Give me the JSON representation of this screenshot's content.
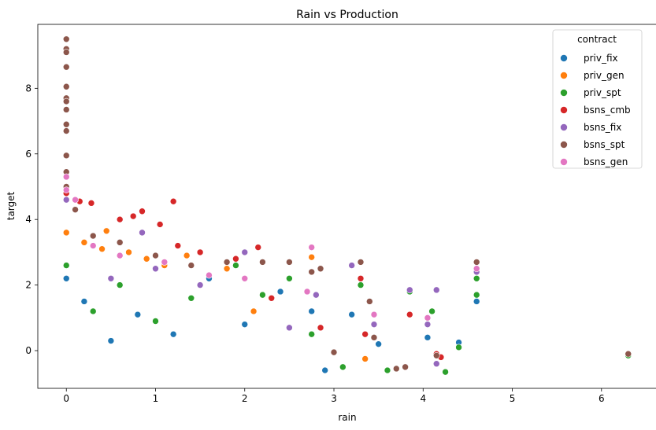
{
  "chart_data": {
    "type": "scatter",
    "title": "Rain vs Production",
    "xlabel": "rain",
    "ylabel": "target",
    "xlim": [
      -0.32,
      6.62
    ],
    "ylim": [
      -1.15,
      9.95
    ],
    "xticks": [
      0,
      1,
      2,
      3,
      4,
      5,
      6
    ],
    "yticks": [
      0,
      2,
      4,
      6,
      8
    ],
    "grid": false,
    "legend": {
      "title": "contract",
      "placement": "top-right"
    },
    "series": [
      {
        "name": "priv_fix",
        "color": "#1f77b4",
        "points": [
          [
            0,
            2.2
          ],
          [
            0.2,
            1.5
          ],
          [
            0.5,
            0.3
          ],
          [
            0.8,
            1.1
          ],
          [
            1.2,
            0.5
          ],
          [
            1.6,
            2.2
          ],
          [
            2.0,
            0.8
          ],
          [
            2.4,
            1.8
          ],
          [
            2.75,
            1.2
          ],
          [
            3.2,
            1.1
          ],
          [
            3.5,
            0.2
          ],
          [
            4.05,
            0.4
          ],
          [
            4.4,
            0.25
          ],
          [
            4.6,
            1.5
          ],
          [
            4.6,
            2.4
          ],
          [
            2.9,
            -0.6
          ]
        ]
      },
      {
        "name": "priv_gen",
        "color": "#ff7f0e",
        "points": [
          [
            0,
            3.6
          ],
          [
            0.2,
            3.3
          ],
          [
            0.4,
            3.1
          ],
          [
            0.45,
            3.65
          ],
          [
            0.7,
            3.0
          ],
          [
            0.9,
            2.8
          ],
          [
            1.1,
            2.6
          ],
          [
            1.35,
            2.9
          ],
          [
            1.8,
            2.5
          ],
          [
            2.1,
            1.2
          ],
          [
            2.75,
            2.85
          ],
          [
            3.35,
            -0.25
          ]
        ]
      },
      {
        "name": "priv_spt",
        "color": "#2ca02c",
        "points": [
          [
            0,
            2.6
          ],
          [
            0.3,
            1.2
          ],
          [
            0.6,
            2.0
          ],
          [
            1.0,
            0.9
          ],
          [
            1.4,
            1.6
          ],
          [
            1.9,
            2.6
          ],
          [
            2.2,
            1.7
          ],
          [
            2.5,
            2.2
          ],
          [
            2.75,
            0.5
          ],
          [
            3.1,
            -0.5
          ],
          [
            3.3,
            2.0
          ],
          [
            3.6,
            -0.6
          ],
          [
            3.85,
            1.8
          ],
          [
            4.1,
            1.2
          ],
          [
            4.25,
            -0.65
          ],
          [
            4.4,
            0.1
          ],
          [
            4.6,
            1.7
          ],
          [
            4.6,
            2.2
          ],
          [
            6.3,
            -0.15
          ]
        ]
      },
      {
        "name": "bsns_cmb",
        "color": "#d62728",
        "points": [
          [
            0,
            4.8
          ],
          [
            0.15,
            4.55
          ],
          [
            0.28,
            4.5
          ],
          [
            0.6,
            4.0
          ],
          [
            0.75,
            4.1
          ],
          [
            0.85,
            4.25
          ],
          [
            1.05,
            3.85
          ],
          [
            1.2,
            4.55
          ],
          [
            1.25,
            3.2
          ],
          [
            1.5,
            3.0
          ],
          [
            1.9,
            2.8
          ],
          [
            2.15,
            3.15
          ],
          [
            2.3,
            1.6
          ],
          [
            2.85,
            0.7
          ],
          [
            3.3,
            2.2
          ],
          [
            3.35,
            0.5
          ],
          [
            3.85,
            1.1
          ],
          [
            4.15,
            -0.1
          ],
          [
            4.2,
            -0.2
          ]
        ]
      },
      {
        "name": "bsns_fix",
        "color": "#9467bd",
        "points": [
          [
            0,
            4.6
          ],
          [
            0.5,
            2.2
          ],
          [
            0.85,
            3.6
          ],
          [
            1.0,
            2.5
          ],
          [
            1.5,
            2.0
          ],
          [
            2.0,
            3.0
          ],
          [
            2.5,
            0.7
          ],
          [
            2.8,
            1.7
          ],
          [
            3.2,
            2.6
          ],
          [
            3.45,
            0.8
          ],
          [
            3.85,
            1.85
          ],
          [
            4.05,
            0.8
          ],
          [
            4.15,
            1.85
          ],
          [
            4.15,
            -0.4
          ],
          [
            4.6,
            2.4
          ]
        ]
      },
      {
        "name": "bsns_spt",
        "color": "#8c564b",
        "points": [
          [
            0,
            9.5
          ],
          [
            0,
            9.2
          ],
          [
            0,
            9.1
          ],
          [
            0,
            8.65
          ],
          [
            0,
            8.05
          ],
          [
            0,
            7.7
          ],
          [
            0,
            7.6
          ],
          [
            0,
            7.35
          ],
          [
            0,
            6.9
          ],
          [
            0,
            6.7
          ],
          [
            0,
            5.95
          ],
          [
            0,
            5.45
          ],
          [
            0,
            5.0
          ],
          [
            0.1,
            4.3
          ],
          [
            0.3,
            3.5
          ],
          [
            0.6,
            3.3
          ],
          [
            1.0,
            2.9
          ],
          [
            1.4,
            2.6
          ],
          [
            1.8,
            2.7
          ],
          [
            2.2,
            2.7
          ],
          [
            2.5,
            2.7
          ],
          [
            2.75,
            2.4
          ],
          [
            2.85,
            2.5
          ],
          [
            3.0,
            -0.05
          ],
          [
            3.3,
            2.7
          ],
          [
            3.4,
            1.5
          ],
          [
            3.45,
            0.4
          ],
          [
            3.7,
            -0.55
          ],
          [
            3.8,
            -0.5
          ],
          [
            4.15,
            -0.15
          ],
          [
            4.6,
            2.7
          ],
          [
            6.3,
            -0.1
          ]
        ]
      },
      {
        "name": "bsns_gen",
        "color": "#e377c2",
        "points": [
          [
            0,
            5.3
          ],
          [
            0,
            4.9
          ],
          [
            0.1,
            4.6
          ],
          [
            0.3,
            3.2
          ],
          [
            0.6,
            2.9
          ],
          [
            1.1,
            2.7
          ],
          [
            1.6,
            2.3
          ],
          [
            2.0,
            2.2
          ],
          [
            2.75,
            3.15
          ],
          [
            2.7,
            1.8
          ],
          [
            3.45,
            1.1
          ],
          [
            4.05,
            1.0
          ],
          [
            4.6,
            2.5
          ]
        ]
      }
    ]
  }
}
